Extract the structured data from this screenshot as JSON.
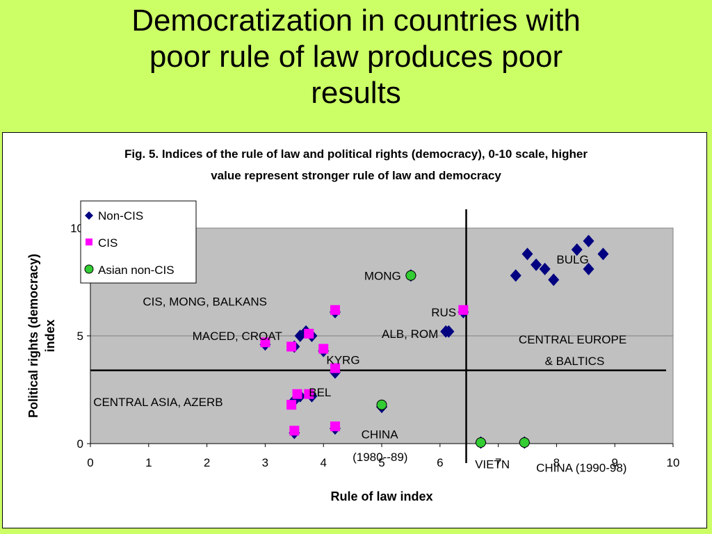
{
  "slide": {
    "title_lines": [
      "Democratization in countries with",
      "poor rule of law produces poor",
      "results"
    ]
  },
  "colors": {
    "background": "#ccff66",
    "plot_area": "#c0c0c0",
    "non_cis": "#000080",
    "cis": "#ff00ff",
    "asian_non_cis": "#33cc33"
  },
  "chart_data": {
    "type": "scatter",
    "title_lines": [
      "Fig. 5. Indices of the rule of law and political rights (democracy), 0-10 scale, higher",
      "value represent stronger rule of law and democracy"
    ],
    "xlabel": "Rule of law index",
    "ylabel_lines": [
      "Political rights (democracy)",
      "index"
    ],
    "xlim": [
      0,
      10
    ],
    "ylim": [
      0,
      10
    ],
    "xticks": [
      "0",
      "1",
      "2",
      "3",
      "4",
      "5",
      "6",
      "7",
      "8",
      "9",
      "10"
    ],
    "yticks": [
      "0",
      "5",
      "10"
    ],
    "grid": "horizontal",
    "legend_position": "top-left",
    "reference_lines": {
      "vertical_x": 6.45,
      "horizontal_y": 3.4
    },
    "series": [
      {
        "name": "Non-CIS",
        "marker": "diamond",
        "points": [
          [
            3.0,
            4.6
          ],
          [
            3.5,
            4.5
          ],
          [
            3.6,
            5.0
          ],
          [
            3.7,
            5.2
          ],
          [
            3.8,
            5.0
          ],
          [
            4.0,
            4.3
          ],
          [
            4.2,
            3.3
          ],
          [
            3.5,
            2.0
          ],
          [
            3.6,
            2.2
          ],
          [
            3.8,
            2.2
          ],
          [
            3.5,
            0.5
          ],
          [
            4.2,
            0.7
          ],
          [
            4.2,
            6.1
          ],
          [
            5.5,
            7.8
          ],
          [
            6.1,
            5.2
          ],
          [
            6.15,
            5.2
          ],
          [
            6.4,
            6.1
          ],
          [
            7.3,
            7.8
          ],
          [
            7.5,
            8.8
          ],
          [
            7.65,
            8.3
          ],
          [
            7.8,
            8.1
          ],
          [
            7.95,
            7.6
          ],
          [
            8.35,
            9.0
          ],
          [
            8.55,
            9.4
          ],
          [
            8.55,
            8.1
          ],
          [
            8.8,
            8.8
          ],
          [
            5.0,
            1.7
          ],
          [
            6.7,
            0.05
          ],
          [
            7.45,
            0.05
          ]
        ]
      },
      {
        "name": "CIS",
        "marker": "square",
        "points": [
          [
            3.0,
            4.7
          ],
          [
            3.45,
            4.5
          ],
          [
            3.75,
            5.1
          ],
          [
            4.0,
            4.4
          ],
          [
            4.2,
            3.5
          ],
          [
            4.2,
            6.2
          ],
          [
            6.4,
            6.2
          ],
          [
            3.45,
            1.8
          ],
          [
            3.55,
            2.3
          ],
          [
            3.75,
            2.3
          ],
          [
            3.5,
            0.6
          ],
          [
            4.2,
            0.8
          ]
        ]
      },
      {
        "name": "Asian non-CIS",
        "marker": "circle",
        "points": [
          [
            5.5,
            7.8
          ],
          [
            5.0,
            1.8
          ],
          [
            6.7,
            0.05
          ],
          [
            7.45,
            0.05
          ]
        ]
      }
    ],
    "annotations": [
      {
        "text": "CIS, MONG, BALKANS",
        "x": 0.9,
        "y": 6.4
      },
      {
        "text": "MONG",
        "x": 4.7,
        "y": 7.6
      },
      {
        "text": "MACED, CROAT",
        "x": 1.75,
        "y": 4.8
      },
      {
        "text": "ALB, ROM",
        "x": 5.0,
        "y": 4.9
      },
      {
        "text": "RUS",
        "x": 5.85,
        "y": 5.9
      },
      {
        "text": "BULG",
        "x": 8.0,
        "y": 8.35
      },
      {
        "text": "KYRG",
        "x": 4.05,
        "y": 3.7
      },
      {
        "text": "BEL",
        "x": 3.75,
        "y": 2.2
      },
      {
        "text": "CENTRAL ASIA, AZERB",
        "x": 0.05,
        "y": 1.75
      },
      {
        "text": "CENTRAL EUROPE",
        "x": 7.35,
        "y": 4.65
      },
      {
        "text": "& BALTICS",
        "x": 7.8,
        "y": 3.65
      },
      {
        "text": "CHINA",
        "x": 4.65,
        "y": 0.25
      },
      {
        "text": "(1980--89)",
        "x": 4.5,
        "y": -0.8
      },
      {
        "text": "VIETN",
        "x": 6.6,
        "y": -1.15
      },
      {
        "text": "CHINA (1990-98)",
        "x": 7.65,
        "y": -1.3
      }
    ]
  }
}
